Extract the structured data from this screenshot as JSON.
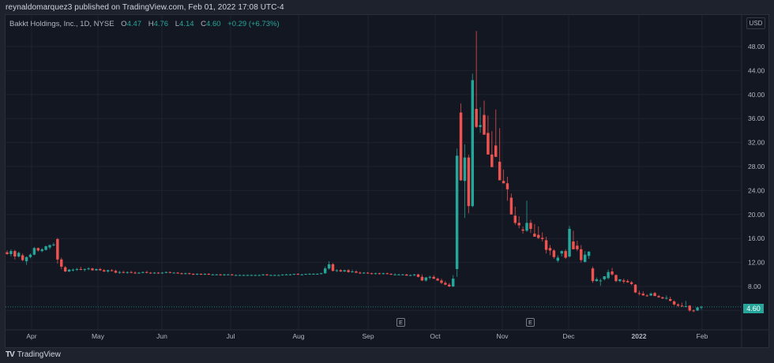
{
  "header": {
    "caption": "reynaldomarquez3 published on TradingView.com, Feb 01, 2022 17:08 UTC-4"
  },
  "legend": {
    "symbol": "Bakkt Holdings, Inc., 1D, NYSE",
    "open_label": "O",
    "open": "4.47",
    "high_label": "H",
    "high": "4.76",
    "low_label": "L",
    "low": "4.14",
    "close_label": "C",
    "close": "4.60",
    "change": "+0.29 (+6.73%)"
  },
  "price_axis": {
    "currency": "USD",
    "ticks": [
      "48.00",
      "44.00",
      "40.00",
      "36.00",
      "32.00",
      "28.00",
      "24.00",
      "20.00",
      "16.00",
      "12.00",
      "8.00",
      "4.00"
    ],
    "last_price": "4.60"
  },
  "time_axis": {
    "ticks": [
      "Apr",
      "May",
      "Jun",
      "Jul",
      "Aug",
      "Sep",
      "Oct",
      "Nov",
      "Dec",
      "2022",
      "Feb"
    ]
  },
  "events": [
    {
      "label": "E",
      "date": "Sep"
    },
    {
      "label": "E",
      "date": "Nov"
    }
  ],
  "footer": {
    "brand": "TradingView",
    "logo": "TV"
  },
  "colors": {
    "up": "#26a69a",
    "down": "#ef5350",
    "background": "#131722",
    "frame": "#1e222d",
    "grid": "#1f2330",
    "text": "#b2b5be"
  },
  "chart_data": {
    "type": "candlestick",
    "title": "Bakkt Holdings, Inc., 1D, NYSE",
    "xlabel": "",
    "ylabel": "USD",
    "ylim": [
      3.0,
      50.5
    ],
    "grid": true,
    "legend_position": "top-left",
    "x_ticks": [
      "Apr",
      "May",
      "Jun",
      "Jul",
      "Aug",
      "Sep",
      "Oct",
      "Nov",
      "Dec",
      "2022",
      "Feb"
    ],
    "y_ticks": [
      4,
      8,
      12,
      16,
      20,
      24,
      28,
      32,
      36,
      40,
      44,
      48
    ],
    "last_close": 4.6,
    "last_ohlc": {
      "open": 4.47,
      "high": 4.76,
      "low": 4.14,
      "close": 4.6,
      "change": 0.29,
      "change_pct": 6.73
    },
    "fields": [
      "open",
      "high",
      "low",
      "close"
    ],
    "candles": [
      [
        13.7,
        14.0,
        13.3,
        13.4
      ],
      [
        13.4,
        14.2,
        13.0,
        13.9
      ],
      [
        13.9,
        14.1,
        12.5,
        13.0
      ],
      [
        13.0,
        13.8,
        12.8,
        13.6
      ],
      [
        13.2,
        13.5,
        12.2,
        12.4
      ],
      [
        12.2,
        13.0,
        11.6,
        12.9
      ],
      [
        12.9,
        13.5,
        12.7,
        13.3
      ],
      [
        13.3,
        14.6,
        13.2,
        14.4
      ],
      [
        14.4,
        14.5,
        13.8,
        14.0
      ],
      [
        13.9,
        14.4,
        13.7,
        14.2
      ],
      [
        14.1,
        14.8,
        14.0,
        14.7
      ],
      [
        14.5,
        15.0,
        14.2,
        14.9
      ],
      [
        14.9,
        15.3,
        14.7,
        15.0
      ],
      [
        15.9,
        16.1,
        11.8,
        12.5
      ],
      [
        12.5,
        12.8,
        10.9,
        11.3
      ],
      [
        11.2,
        11.4,
        10.4,
        10.5
      ],
      [
        10.5,
        10.9,
        10.4,
        10.8
      ],
      [
        10.7,
        11.0,
        10.5,
        10.8
      ],
      [
        10.8,
        11.1,
        10.6,
        10.9
      ],
      [
        10.9,
        11.3,
        10.7,
        10.8
      ],
      [
        10.8,
        11.0,
        10.5,
        10.9
      ],
      [
        10.9,
        11.2,
        10.7,
        11.0
      ],
      [
        11.0,
        11.1,
        10.6,
        10.7
      ],
      [
        10.7,
        11.0,
        10.6,
        10.9
      ],
      [
        10.9,
        11.1,
        10.6,
        10.7
      ],
      [
        10.7,
        10.9,
        10.4,
        10.5
      ],
      [
        10.5,
        10.8,
        10.3,
        10.7
      ],
      [
        10.7,
        10.9,
        10.5,
        10.6
      ],
      [
        10.6,
        10.8,
        10.2,
        10.3
      ],
      [
        10.3,
        10.6,
        10.1,
        10.4
      ],
      [
        10.4,
        10.6,
        10.2,
        10.3
      ],
      [
        10.3,
        10.5,
        10.1,
        10.4
      ],
      [
        10.4,
        10.6,
        10.2,
        10.3
      ],
      [
        10.3,
        10.5,
        10.1,
        10.2
      ],
      [
        10.2,
        10.4,
        10.1,
        10.3
      ],
      [
        10.3,
        10.5,
        10.2,
        10.4
      ],
      [
        10.4,
        10.6,
        10.2,
        10.3
      ],
      [
        10.3,
        10.4,
        10.1,
        10.2
      ],
      [
        10.2,
        10.4,
        10.1,
        10.3
      ],
      [
        10.3,
        10.4,
        10.1,
        10.2
      ],
      [
        10.2,
        10.4,
        10.1,
        10.3
      ],
      [
        10.3,
        10.5,
        10.2,
        10.4
      ],
      [
        10.4,
        10.5,
        10.2,
        10.3
      ],
      [
        10.3,
        10.4,
        10.2,
        10.3
      ],
      [
        10.3,
        10.4,
        10.1,
        10.2
      ],
      [
        10.2,
        10.3,
        10.0,
        10.1
      ],
      [
        10.1,
        10.3,
        10.0,
        10.2
      ],
      [
        10.2,
        10.3,
        10.0,
        10.1
      ],
      [
        10.1,
        10.2,
        9.9,
        10.0
      ],
      [
        10.0,
        10.2,
        9.9,
        10.1
      ],
      [
        10.1,
        10.2,
        9.9,
        10.0
      ],
      [
        10.0,
        10.2,
        9.9,
        10.1
      ],
      [
        10.1,
        10.2,
        9.9,
        10.0
      ],
      [
        10.0,
        10.1,
        9.9,
        10.0
      ],
      [
        10.0,
        10.1,
        9.9,
        10.0
      ],
      [
        10.0,
        10.1,
        9.8,
        9.9
      ],
      [
        9.9,
        10.1,
        9.8,
        10.0
      ],
      [
        10.0,
        10.1,
        9.9,
        10.0
      ],
      [
        10.0,
        10.1,
        9.8,
        9.9
      ],
      [
        9.9,
        10.0,
        9.8,
        9.9
      ],
      [
        9.9,
        10.0,
        9.8,
        9.9
      ],
      [
        9.9,
        10.0,
        9.8,
        9.9
      ],
      [
        9.9,
        10.0,
        9.8,
        9.9
      ],
      [
        9.9,
        10.0,
        9.8,
        9.9
      ],
      [
        9.9,
        10.0,
        9.8,
        9.9
      ],
      [
        9.9,
        10.0,
        9.8,
        9.9
      ],
      [
        9.9,
        10.1,
        9.8,
        10.0
      ],
      [
        10.0,
        10.1,
        9.8,
        9.9
      ],
      [
        9.9,
        10.0,
        9.8,
        9.9
      ],
      [
        9.9,
        10.0,
        9.8,
        9.9
      ],
      [
        9.9,
        10.0,
        9.8,
        9.9
      ],
      [
        9.9,
        10.0,
        9.8,
        10.0
      ],
      [
        10.0,
        10.1,
        9.9,
        10.0
      ],
      [
        10.0,
        10.1,
        9.9,
        10.0
      ],
      [
        10.0,
        10.1,
        9.9,
        10.1
      ],
      [
        10.1,
        10.2,
        9.9,
        10.0
      ],
      [
        10.0,
        10.1,
        9.9,
        10.0
      ],
      [
        10.0,
        10.1,
        9.9,
        10.1
      ],
      [
        10.1,
        10.2,
        10.0,
        10.1
      ],
      [
        10.1,
        10.2,
        10.0,
        10.1
      ],
      [
        10.0,
        10.2,
        10.0,
        10.1
      ],
      [
        10.1,
        10.3,
        10.0,
        10.2
      ],
      [
        10.2,
        11.3,
        10.1,
        11.0
      ],
      [
        11.0,
        12.2,
        10.8,
        11.7
      ],
      [
        11.7,
        11.9,
        10.5,
        10.6
      ],
      [
        10.6,
        10.9,
        10.4,
        10.7
      ],
      [
        10.7,
        10.9,
        10.4,
        10.5
      ],
      [
        10.5,
        10.8,
        10.4,
        10.7
      ],
      [
        10.7,
        10.9,
        10.3,
        10.4
      ],
      [
        10.4,
        10.8,
        10.3,
        10.5
      ],
      [
        10.5,
        10.7,
        10.2,
        10.3
      ],
      [
        10.3,
        10.5,
        10.1,
        10.2
      ],
      [
        10.2,
        10.4,
        10.1,
        10.3
      ],
      [
        10.3,
        10.4,
        10.1,
        10.2
      ],
      [
        10.2,
        10.3,
        10.0,
        10.1
      ],
      [
        10.1,
        10.3,
        10.0,
        10.2
      ],
      [
        10.2,
        10.3,
        10.0,
        10.1
      ],
      [
        10.1,
        10.3,
        10.0,
        10.2
      ],
      [
        10.2,
        10.3,
        10.0,
        10.1
      ],
      [
        10.1,
        10.2,
        9.9,
        10.0
      ],
      [
        10.0,
        10.2,
        9.9,
        10.0
      ],
      [
        10.0,
        10.1,
        9.9,
        10.0
      ],
      [
        10.0,
        10.1,
        9.9,
        10.0
      ],
      [
        10.0,
        10.1,
        9.8,
        9.8
      ],
      [
        9.8,
        10.0,
        9.7,
        9.9
      ],
      [
        9.9,
        10.1,
        9.7,
        10.0
      ],
      [
        10.0,
        10.1,
        9.5,
        9.6
      ],
      [
        9.6,
        10.0,
        8.9,
        9.0
      ],
      [
        9.0,
        9.6,
        8.8,
        9.5
      ],
      [
        9.5,
        9.8,
        9.2,
        9.6
      ],
      [
        9.6,
        9.9,
        9.2,
        9.3
      ],
      [
        9.3,
        9.5,
        8.9,
        9.0
      ],
      [
        9.0,
        9.3,
        8.4,
        8.6
      ],
      [
        8.6,
        8.9,
        8.2,
        8.3
      ],
      [
        8.3,
        8.6,
        7.9,
        8.0
      ],
      [
        8.0,
        9.9,
        7.9,
        9.3
      ],
      [
        10.9,
        31.0,
        9.6,
        29.8
      ],
      [
        37.0,
        38.5,
        25.6,
        25.7
      ],
      [
        25.6,
        31.7,
        19.4,
        29.5
      ],
      [
        29.5,
        30.0,
        20.2,
        21.4
      ],
      [
        21.4,
        43.5,
        21.2,
        42.4
      ],
      [
        37.6,
        50.6,
        34.4,
        34.6
      ],
      [
        34.6,
        37.9,
        33.6,
        34.9
      ],
      [
        36.6,
        39.0,
        33.9,
        33.3
      ],
      [
        33.6,
        36.5,
        31.9,
        30.0
      ],
      [
        30.0,
        33.9,
        29.0,
        27.9
      ],
      [
        31.5,
        37.5,
        30.2,
        29.6
      ],
      [
        28.8,
        34.4,
        26.7,
        25.7
      ],
      [
        25.6,
        27.5,
        25.2,
        25.2
      ],
      [
        25.2,
        26.3,
        22.3,
        24.2
      ],
      [
        22.8,
        23.5,
        20.2,
        20.0
      ],
      [
        19.8,
        21.3,
        18.3,
        18.6
      ],
      [
        18.6,
        19.7,
        17.7,
        18.2
      ],
      [
        17.5,
        18.0,
        16.8,
        17.3
      ],
      [
        17.3,
        22.3,
        17.1,
        18.6
      ],
      [
        18.6,
        19.1,
        16.9,
        17.6
      ],
      [
        16.8,
        18.4,
        16.3,
        16.3
      ],
      [
        16.6,
        18.0,
        15.9,
        16.1
      ],
      [
        16.1,
        17.0,
        15.5,
        15.9
      ],
      [
        15.7,
        16.3,
        13.5,
        14.1
      ],
      [
        14.4,
        14.9,
        13.2,
        14.0
      ],
      [
        14.0,
        14.2,
        12.6,
        12.9
      ],
      [
        12.3,
        13.2,
        12.0,
        12.8
      ],
      [
        13.5,
        14.0,
        13.0,
        13.9
      ],
      [
        13.9,
        14.2,
        12.6,
        12.8
      ],
      [
        13.0,
        18.1,
        12.8,
        17.6
      ],
      [
        15.5,
        17.3,
        14.8,
        14.2
      ],
      [
        14.8,
        15.6,
        13.9,
        14.2
      ],
      [
        14.2,
        14.9,
        12.0,
        12.4
      ],
      [
        12.1,
        13.9,
        12.0,
        13.3
      ],
      [
        13.1,
        13.9,
        12.6,
        13.8
      ],
      [
        11.0,
        11.3,
        8.6,
        8.9
      ],
      [
        8.9,
        9.5,
        8.8,
        9.2
      ],
      [
        9.0,
        9.3,
        8.1,
        9.0
      ],
      [
        9.2,
        9.7,
        9.0,
        9.7
      ],
      [
        9.4,
        10.8,
        9.2,
        10.4
      ],
      [
        10.5,
        11.1,
        9.8,
        10.0
      ],
      [
        9.9,
        10.0,
        8.7,
        8.9
      ],
      [
        8.9,
        9.1,
        8.7,
        9.2
      ],
      [
        9.0,
        9.3,
        8.5,
        8.8
      ],
      [
        8.9,
        9.2,
        8.6,
        8.7
      ],
      [
        8.7,
        8.9,
        8.2,
        8.4
      ],
      [
        8.3,
        8.4,
        6.9,
        7.0
      ],
      [
        6.9,
        7.3,
        6.5,
        6.8
      ],
      [
        6.8,
        7.2,
        6.6,
        6.5
      ],
      [
        6.5,
        6.7,
        6.3,
        6.4
      ],
      [
        6.5,
        7.0,
        6.4,
        6.8
      ],
      [
        6.9,
        7.1,
        6.4,
        6.4
      ],
      [
        6.4,
        6.6,
        6.1,
        6.2
      ],
      [
        6.2,
        6.3,
        5.9,
        6.0
      ],
      [
        6.0,
        6.5,
        5.8,
        6.1
      ],
      [
        5.9,
        6.3,
        5.5,
        5.6
      ],
      [
        5.5,
        5.7,
        4.8,
        5.0
      ],
      [
        5.0,
        5.2,
        4.6,
        4.8
      ],
      [
        4.8,
        5.3,
        4.6,
        4.7
      ],
      [
        4.7,
        5.6,
        4.6,
        4.7
      ],
      [
        4.8,
        4.9,
        3.8,
        4.0
      ],
      [
        4.0,
        4.2,
        3.7,
        3.9
      ],
      [
        4.0,
        4.6,
        3.9,
        4.5
      ],
      [
        4.47,
        4.76,
        4.14,
        4.6
      ]
    ]
  }
}
